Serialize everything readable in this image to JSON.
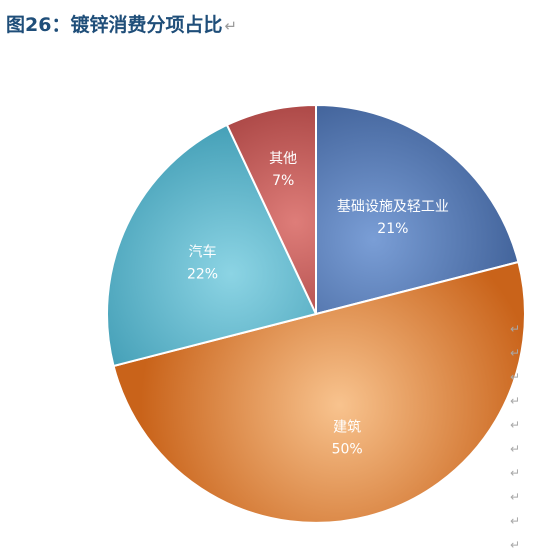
{
  "figure": {
    "title": "图26：镀锌消费分项占比",
    "return_mark": "↵"
  },
  "chart_data": {
    "type": "pie",
    "title": "图26：镀锌消费分项占比",
    "start_angle_deg": 0,
    "direction": "clockwise",
    "slices": [
      {
        "label": "基础设施及轻工业",
        "value": 21,
        "value_label": "21%",
        "color_light": "#7a9ed6",
        "color_dark": "#2f4f86"
      },
      {
        "label": "建筑",
        "value": 50,
        "value_label": "50%",
        "color_light": "#f8c38e",
        "color_dark": "#c9631a"
      },
      {
        "label": "汽车",
        "value": 22,
        "value_label": "22%",
        "color_light": "#8cd4e4",
        "color_dark": "#2e8fa9"
      },
      {
        "label": "其他",
        "value": 7,
        "value_label": "7%",
        "color_light": "#de7d79",
        "color_dark": "#8c2626"
      }
    ]
  },
  "side_marks": [
    "↵",
    "↵",
    "↵",
    "↵",
    "↵",
    "↵",
    "↵",
    "↵",
    "↵",
    "↵"
  ]
}
